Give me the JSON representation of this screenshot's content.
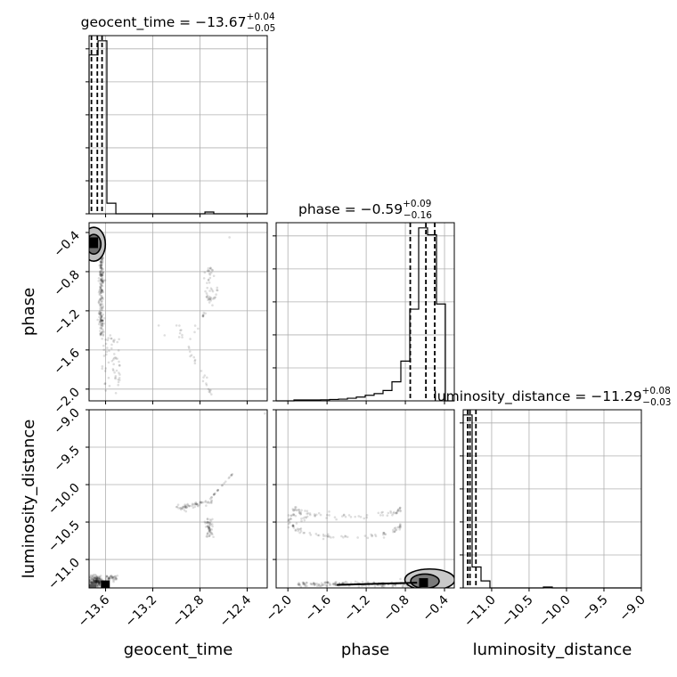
{
  "chart_data": {
    "type": "corner",
    "params": [
      "geocent_time",
      "phase",
      "luminosity_distance"
    ],
    "axis_labels": [
      "geocent_time",
      "phase",
      "luminosity_distance"
    ],
    "ranges": {
      "geocent_time": [
        -13.74,
        -12.23
      ],
      "phase": [
        -2.12,
        -0.3
      ],
      "luminosity_distance": [
        -11.38,
        -9.0
      ]
    },
    "ticks": {
      "geocent_time": [
        -13.6,
        -13.2,
        -12.8,
        -12.4
      ],
      "phase": [
        -2.0,
        -1.6,
        -1.2,
        -0.8,
        -0.4
      ],
      "luminosity_distance": [
        -11.0,
        -10.5,
        -10.0,
        -9.5,
        -9.0
      ]
    },
    "tick_labels": {
      "geocent_time": [
        "−13.6",
        "−13.2",
        "−12.8",
        "−12.4"
      ],
      "phase": [
        "−2.0",
        "−1.6",
        "−1.2",
        "−0.8",
        "−0.4"
      ],
      "luminosity_distance": [
        "−11.0",
        "−10.5",
        "−10.0",
        "−9.5",
        "−9.0"
      ]
    },
    "titles": [
      {
        "param": "geocent_time",
        "prefix": "geocent_time = −13.67",
        "sup": "+0.04",
        "sub": "−0.05"
      },
      {
        "param": "phase",
        "prefix": "phase = −0.59",
        "sup": "+0.09",
        "sub": "−0.16"
      },
      {
        "param": "luminosity_distance",
        "prefix": "luminosity_distance = −11.29",
        "sup": "+0.08",
        "sub": "−0.03"
      }
    ],
    "quantiles": {
      "geocent_time": [
        -13.72,
        -13.67,
        -13.63
      ],
      "phase": [
        -0.75,
        -0.59,
        -0.5
      ],
      "luminosity_distance": [
        -11.32,
        -11.29,
        -11.21
      ]
    },
    "histograms": {
      "geocent_time": {
        "edges": [
          -13.74,
          -13.664,
          -13.589,
          -13.513,
          -13.438,
          -13.362,
          -13.287,
          -13.211,
          -13.136,
          -13.06,
          -12.985,
          -12.909,
          -12.834,
          -12.758,
          -12.683,
          -12.607,
          -12.532,
          -12.456,
          -12.381,
          -12.305,
          -12.23
        ],
        "counts": [
          900,
          980,
          60,
          0,
          0,
          0,
          0,
          0,
          0,
          0,
          0,
          0,
          0,
          10,
          0,
          0,
          0,
          0,
          0,
          0
        ]
      },
      "phase": {
        "edges": [
          -2.12,
          -2.029,
          -1.938,
          -1.847,
          -1.756,
          -1.665,
          -1.574,
          -1.483,
          -1.392,
          -1.301,
          -1.21,
          -1.119,
          -1.028,
          -0.937,
          -0.846,
          -0.755,
          -0.664,
          -0.573,
          -0.482,
          -0.391,
          -0.3
        ],
        "counts": [
          0,
          0,
          5,
          5,
          5,
          6,
          8,
          10,
          15,
          22,
          32,
          42,
          60,
          110,
          230,
          530,
          1000,
          960,
          560,
          0
        ]
      },
      "luminosity_distance": {
        "edges": [
          -11.38,
          -11.261,
          -11.142,
          -11.023,
          -10.904,
          -10.785,
          -10.666,
          -10.547,
          -10.428,
          -10.309,
          -10.19,
          -10.071,
          -9.952,
          -9.833,
          -9.714,
          -9.595,
          -9.476,
          -9.357,
          -9.238,
          -9.119,
          -9.0
        ],
        "counts": [
          990,
          120,
          40,
          0,
          0,
          0,
          0,
          0,
          0,
          5,
          0,
          0,
          0,
          0,
          0,
          0,
          0,
          0,
          0,
          0
        ]
      }
    }
  }
}
